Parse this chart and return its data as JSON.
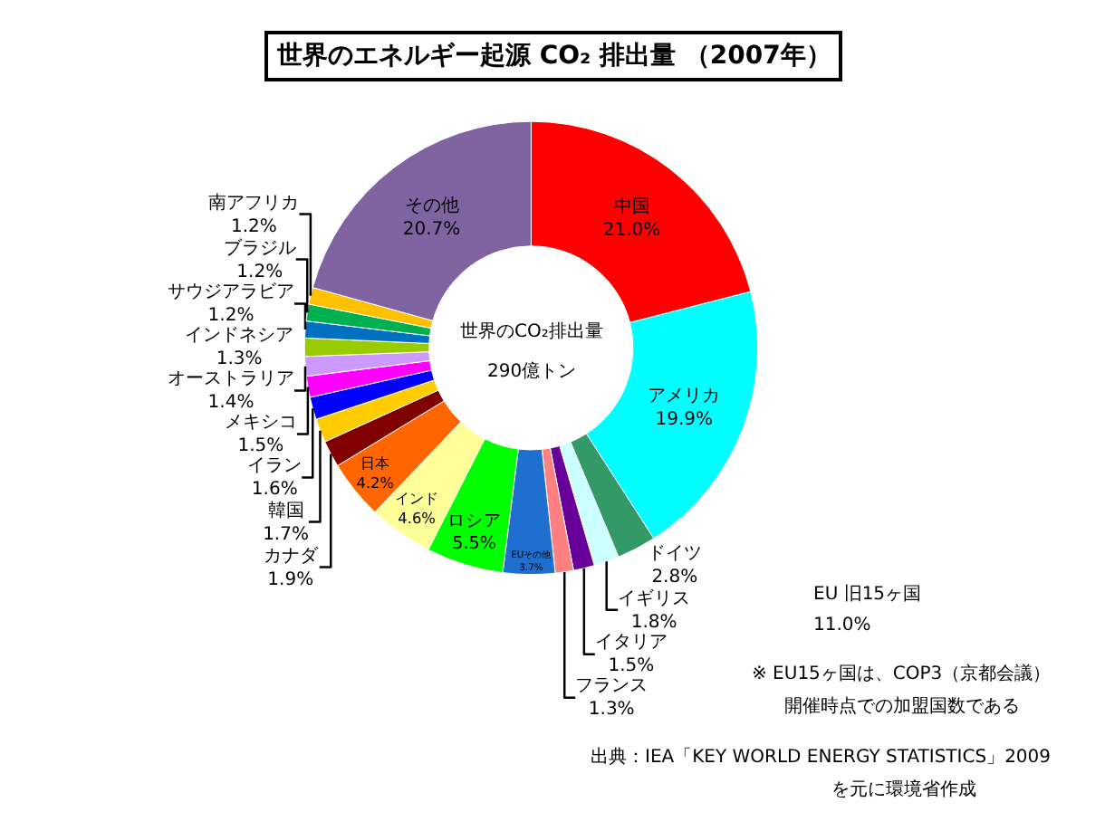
{
  "chart_data": {
    "type": "donut",
    "title": "世界のエネルギー起源 CO₂ 排出量 （2007年）",
    "categories": [
      "中国",
      "アメリカ",
      "ドイツ",
      "イギリス",
      "イタリア",
      "フランス",
      "EUその他",
      "ロシア",
      "インド",
      "日本",
      "カナダ",
      "韓国",
      "イラン",
      "メキシコ",
      "オーストラリア",
      "インドネシア",
      "サウジアラビア",
      "ブラジル",
      "南アフリカ",
      "その他"
    ],
    "values": [
      21.0,
      19.9,
      2.8,
      1.8,
      1.5,
      1.3,
      3.7,
      5.5,
      4.6,
      4.2,
      1.9,
      1.7,
      1.6,
      1.5,
      1.4,
      1.3,
      1.2,
      1.2,
      1.2,
      20.7
    ],
    "value_labels": [
      "21.0%",
      "19.9%",
      "2.8%",
      "1.8%",
      "1.5%",
      "1.3%",
      "3.7%",
      "5.5%",
      "4.6%",
      "4.2%",
      "1.9%",
      "1.7%",
      "1.6%",
      "1.5%",
      "1.4%",
      "1.3%",
      "1.2%",
      "1.2%",
      "1.2%",
      "20.7%"
    ],
    "colors": [
      "#ff0000",
      "#00ffff",
      "#339966",
      "#ccffff",
      "#660099",
      "#ff8080",
      "#1f6fd0",
      "#00ff00",
      "#ffff99",
      "#ff6600",
      "#800000",
      "#ffcc00",
      "#0000ff",
      "#ff00ff",
      "#cc99ff",
      "#99cc00",
      "#0070c0",
      "#00b050",
      "#ffc000",
      "#8064a2"
    ],
    "legend": false,
    "annotations": [
      "世界のCO₂排出量",
      "290億トン",
      "EU 旧15ヶ国",
      "11.0%",
      "※ EU15ヶ国は、COP3（京都会議）",
      "開催時点での加盟国数である",
      "出典：IEA「KEY WORLD ENERGY STATISTICS」2009",
      "を元に環境省作成"
    ]
  }
}
